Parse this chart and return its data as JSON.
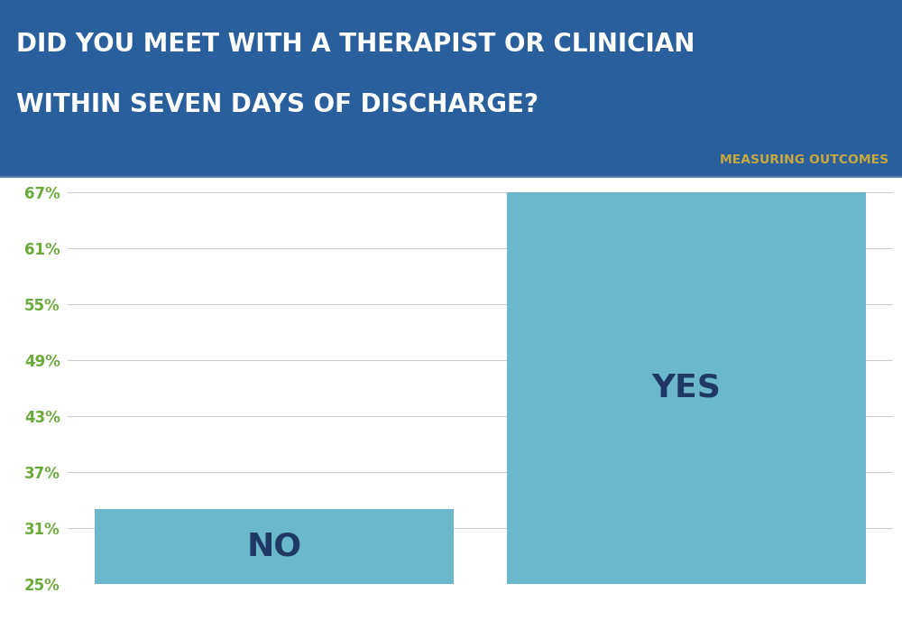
{
  "title_line1": "DID YOU MEET WITH A THERAPIST OR CLINICIAN",
  "title_line2": "WITHIN SEVEN DAYS OF DISCHARGE?",
  "subtitle": "MEASURING OUTCOMES",
  "categories": [
    "NO",
    "YES"
  ],
  "values": [
    33,
    67
  ],
  "bar_color": "#6bb8cc",
  "bar_label_color": "#1f3864",
  "title_text_color": "#ffffff",
  "subtitle_color": "#c8a83c",
  "tick_label_color": "#6aaa3a",
  "chart_bg_color": "#ffffff",
  "header_bg_color": "#2a5f9e",
  "ylim_min": 25,
  "ylim_max": 68,
  "yticks": [
    25,
    31,
    37,
    43,
    49,
    55,
    61,
    67
  ],
  "grid_color": "#cccccc",
  "bar_label_fontsize": 26,
  "tick_fontsize": 12,
  "subtitle_fontsize": 10,
  "title_fontsize": 20
}
